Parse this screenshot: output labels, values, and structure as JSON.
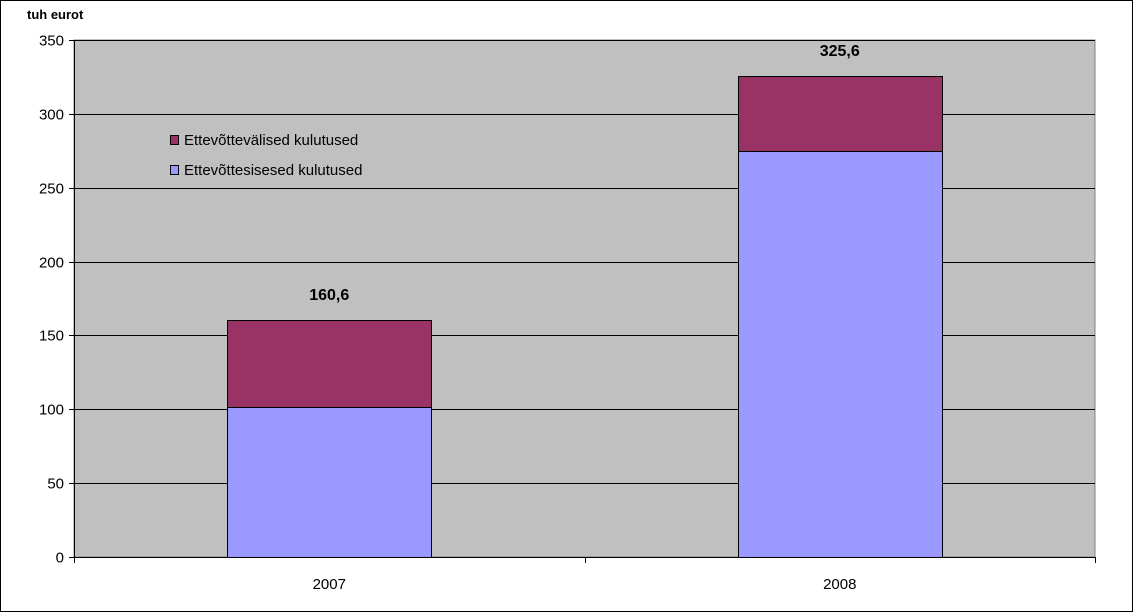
{
  "chart_data": {
    "type": "bar",
    "stacked": true,
    "title": "",
    "xlabel": "",
    "ylabel": "tuh eurot",
    "categories": [
      "2007",
      "2008"
    ],
    "series": [
      {
        "name": "Ettevõttesisesed kulutused",
        "values": [
          101.7,
          274.9
        ],
        "color": "#9999ff"
      },
      {
        "name": "Ettevõttevälised kulutused",
        "values": [
          58.9,
          50.7
        ],
        "color": "#993366"
      }
    ],
    "totals": [
      160.6,
      325.6
    ],
    "total_labels": [
      "160,6",
      "325,6"
    ],
    "ylim": [
      0,
      350
    ],
    "yticks": [
      0,
      50,
      100,
      150,
      200,
      250,
      300,
      350
    ],
    "grid": true,
    "legend_position": "upper-left inside plot",
    "legend": [
      {
        "name": "Ettevõttevälised kulutused",
        "color": "#993366"
      },
      {
        "name": "Ettevõttesisesed kulutused",
        "color": "#9999ff"
      }
    ],
    "plot_background": "#c0c0c0"
  }
}
